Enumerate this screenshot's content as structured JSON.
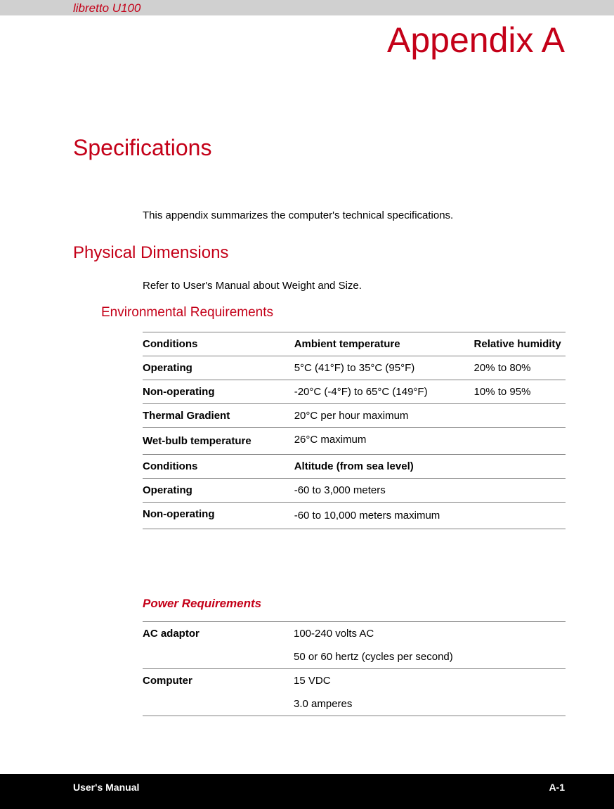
{
  "header": {
    "product": "libretto U100",
    "appendix": "Appendix A"
  },
  "headings": {
    "specifications": "Specifications",
    "intro": "This appendix summarizes the computer's technical specifications.",
    "physical": "Physical Dimensions",
    "refer": "Refer to User's Manual about Weight and Size.",
    "environmental": "Environmental Requirements",
    "power": "Power Requirements"
  },
  "env_table": {
    "columns": [
      "Conditions",
      "Ambient temperature",
      "Relative humidity"
    ],
    "rows": [
      {
        "label": "Operating",
        "c1": "5°C (41°F) to 35°C (95°F)",
        "c2": "20% to 80%"
      },
      {
        "label": "Non-operating",
        "c1": "-20°C (-4°F) to 65°C (149°F)",
        "c2": "10% to 95%"
      },
      {
        "label": "Thermal Gradient",
        "c1": "20°C per hour maximum",
        "c2": ""
      },
      {
        "label": "Wet-bulb temperature",
        "c1": "26°C maximum",
        "c2": ""
      }
    ],
    "alt_columns": [
      "Conditions",
      "Altitude (from sea level)"
    ],
    "alt_rows": [
      {
        "label": "Operating",
        "c1": "-60 to 3,000 meters"
      },
      {
        "label": "Non-operating",
        "c1": "-60 to 10,000 meters maximum"
      }
    ]
  },
  "power_table": {
    "rows": [
      {
        "label": "AC adaptor",
        "l1": "100-240 volts AC",
        "l2": "50 or 60 hertz (cycles per second)"
      },
      {
        "label": "Computer",
        "l1": "15 VDC",
        "l2": "3.0 amperes"
      }
    ]
  },
  "footer": {
    "left": "User's Manual",
    "right": "A-1"
  },
  "colors": {
    "accent": "#c40018",
    "text": "#000000",
    "header_bg": "#d0d0d0",
    "footer_bg": "#000000",
    "border": "#808080"
  }
}
